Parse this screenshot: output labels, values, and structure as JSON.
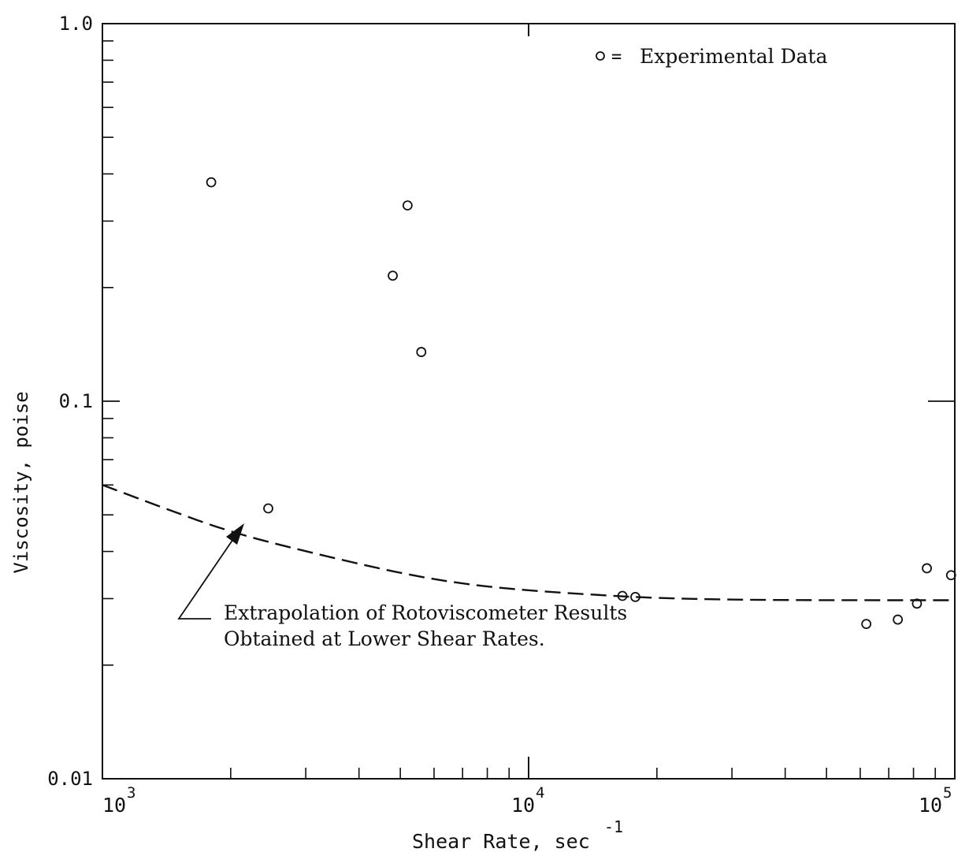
{
  "chart_data": {
    "type": "scatter",
    "xscale": "log",
    "yscale": "log",
    "xlim": [
      1000,
      100000
    ],
    "ylim": [
      0.01,
      1.0
    ],
    "xlabel": "Shear Rate, sec",
    "xlabel_sup": "-1",
    "ylabel": "Viscosity, poise",
    "x_ticks": [
      {
        "base": "10",
        "exp": "3",
        "value": 1000
      },
      {
        "base": "10",
        "exp": "4",
        "value": 10000
      },
      {
        "base": "10",
        "exp": "5",
        "value": 100000
      }
    ],
    "y_ticks": [
      {
        "label": "1.0",
        "value": 1.0
      },
      {
        "label": "0.1",
        "value": 0.1
      },
      {
        "label": "0.01",
        "value": 0.01
      }
    ],
    "legend": {
      "marker": "o",
      "label": "Experimental Data",
      "position": "top-right"
    },
    "series": [
      {
        "name": "Experimental Data",
        "marker": "open-circle",
        "points": [
          {
            "x": 1800,
            "y": 0.38
          },
          {
            "x": 2450,
            "y": 0.052
          },
          {
            "x": 4800,
            "y": 0.215
          },
          {
            "x": 5200,
            "y": 0.33
          },
          {
            "x": 5600,
            "y": 0.135
          },
          {
            "x": 16600,
            "y": 0.0305
          },
          {
            "x": 17800,
            "y": 0.0303
          },
          {
            "x": 62000,
            "y": 0.0257
          },
          {
            "x": 73500,
            "y": 0.0264
          },
          {
            "x": 81500,
            "y": 0.0291
          },
          {
            "x": 86000,
            "y": 0.0361
          },
          {
            "x": 98000,
            "y": 0.0346
          }
        ]
      },
      {
        "name": "Extrapolation of Rotoviscometer Results Obtained at Lower Shear Rates.",
        "style": "dashed-line",
        "points": [
          {
            "x": 1000,
            "y": 0.06
          },
          {
            "x": 1400,
            "y": 0.052
          },
          {
            "x": 2000,
            "y": 0.045
          },
          {
            "x": 3000,
            "y": 0.04
          },
          {
            "x": 5000,
            "y": 0.035
          },
          {
            "x": 7000,
            "y": 0.0328
          },
          {
            "x": 10000,
            "y": 0.0315
          },
          {
            "x": 15000,
            "y": 0.0306
          },
          {
            "x": 20000,
            "y": 0.0301
          },
          {
            "x": 30000,
            "y": 0.0298
          },
          {
            "x": 50000,
            "y": 0.0297
          },
          {
            "x": 100000,
            "y": 0.0297
          }
        ]
      }
    ],
    "annotations": [
      {
        "line1": "Extrapolation of Rotoviscometer Results",
        "line2": "Obtained at Lower Shear Rates.",
        "points_to": {
          "x": 2400,
          "y": 0.0425
        }
      }
    ],
    "grid": false
  }
}
